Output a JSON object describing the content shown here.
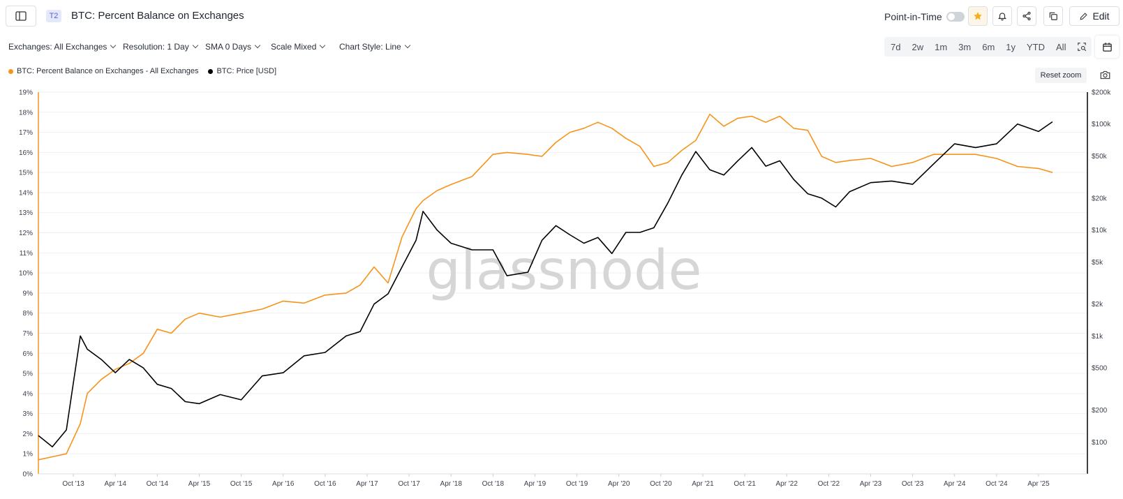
{
  "header": {
    "tier": "T2",
    "title": "BTC: Percent Balance on Exchanges",
    "point_in_time_label": "Point-in-Time",
    "edit_label": "Edit"
  },
  "filters": {
    "exchanges": "Exchanges: All Exchanges",
    "resolution": "Resolution: 1 Day",
    "sma": "SMA 0 Days",
    "scale": "Scale Mixed",
    "chart_style": "Chart Style: Line"
  },
  "ranges": [
    "7d",
    "2w",
    "1m",
    "3m",
    "6m",
    "1y",
    "YTD",
    "All"
  ],
  "reset_zoom": "Reset zoom",
  "watermark": "glassnode",
  "colors": {
    "balance": "#f7931a",
    "price": "#000000",
    "accent": "#f2b01e"
  },
  "chart_data": {
    "type": "line",
    "title": "",
    "x_ticks": [
      "Oct '13",
      "Apr '14",
      "Oct '14",
      "Apr '15",
      "Oct '15",
      "Apr '16",
      "Oct '16",
      "Apr '17",
      "Oct '17",
      "Apr '18",
      "Oct '18",
      "Apr '19",
      "Oct '19",
      "Apr '20",
      "Oct '20",
      "Apr '21",
      "Oct '21",
      "Apr '22",
      "Oct '22",
      "Apr '23",
      "Oct '23",
      "Apr '24",
      "Oct '24",
      "Apr '25"
    ],
    "y_left_ticks": [
      "0%",
      "1%",
      "2%",
      "3%",
      "4%",
      "5%",
      "6%",
      "7%",
      "8%",
      "9%",
      "10%",
      "11%",
      "12%",
      "13%",
      "14%",
      "15%",
      "16%",
      "17%",
      "18%",
      "19%"
    ],
    "y_left_range": [
      0,
      19
    ],
    "y_right_ticks": [
      {
        "label": "$100",
        "value": 100
      },
      {
        "label": "$200",
        "value": 200
      },
      {
        "label": "$500",
        "value": 500
      },
      {
        "label": "$1k",
        "value": 1000
      },
      {
        "label": "$2k",
        "value": 2000
      },
      {
        "label": "$5k",
        "value": 5000
      },
      {
        "label": "$10k",
        "value": 10000
      },
      {
        "label": "$20k",
        "value": 20000
      },
      {
        "label": "$50k",
        "value": 50000
      },
      {
        "label": "$100k",
        "value": 100000
      },
      {
        "label": "$200k",
        "value": 200000
      }
    ],
    "y_right_scale": "log",
    "x_range": [
      "2013-05",
      "2025-06"
    ],
    "legend_position": "top-left",
    "grid": true,
    "series": [
      {
        "name": "BTC: Percent Balance on Exchanges - All Exchanges",
        "axis": "left",
        "x": [
          "2013-05",
          "2013-07",
          "2013-09",
          "2013-11",
          "2013-12",
          "2014-02",
          "2014-04",
          "2014-06",
          "2014-08",
          "2014-10",
          "2014-12",
          "2015-02",
          "2015-04",
          "2015-07",
          "2015-10",
          "2016-01",
          "2016-04",
          "2016-07",
          "2016-10",
          "2017-01",
          "2017-03",
          "2017-05",
          "2017-07",
          "2017-09",
          "2017-11",
          "2017-12",
          "2018-02",
          "2018-04",
          "2018-07",
          "2018-10",
          "2018-12",
          "2019-03",
          "2019-05",
          "2019-07",
          "2019-09",
          "2019-11",
          "2020-01",
          "2020-03",
          "2020-05",
          "2020-07",
          "2020-09",
          "2020-11",
          "2021-01",
          "2021-03",
          "2021-05",
          "2021-07",
          "2021-09",
          "2021-11",
          "2022-01",
          "2022-03",
          "2022-05",
          "2022-07",
          "2022-09",
          "2022-11",
          "2023-01",
          "2023-04",
          "2023-07",
          "2023-10",
          "2024-01",
          "2024-04",
          "2024-07",
          "2024-10",
          "2025-01",
          "2025-04",
          "2025-06"
        ],
        "values": [
          0.7,
          0.85,
          1.0,
          2.5,
          4.0,
          4.7,
          5.2,
          5.5,
          6.0,
          7.2,
          7.0,
          7.7,
          8.0,
          7.8,
          8.0,
          8.2,
          8.6,
          8.5,
          8.9,
          9.0,
          9.4,
          10.3,
          9.5,
          11.8,
          13.2,
          13.6,
          14.1,
          14.4,
          14.8,
          15.9,
          16.0,
          15.9,
          15.8,
          16.5,
          17.0,
          17.2,
          17.5,
          17.2,
          16.7,
          16.3,
          15.3,
          15.5,
          16.1,
          16.6,
          17.9,
          17.3,
          17.7,
          17.8,
          17.5,
          17.8,
          17.2,
          17.1,
          15.8,
          15.5,
          15.6,
          15.7,
          15.3,
          15.5,
          15.9,
          15.9,
          15.9,
          15.7,
          15.3,
          15.2,
          15.0
        ]
      },
      {
        "name": "BTC: Price [USD]",
        "axis": "right",
        "x": [
          "2013-05",
          "2013-07",
          "2013-09",
          "2013-11",
          "2013-12",
          "2014-02",
          "2014-04",
          "2014-06",
          "2014-08",
          "2014-10",
          "2014-12",
          "2015-02",
          "2015-04",
          "2015-07",
          "2015-10",
          "2016-01",
          "2016-04",
          "2016-07",
          "2016-10",
          "2017-01",
          "2017-03",
          "2017-05",
          "2017-07",
          "2017-09",
          "2017-11",
          "2017-12",
          "2018-02",
          "2018-04",
          "2018-07",
          "2018-10",
          "2018-12",
          "2019-03",
          "2019-05",
          "2019-07",
          "2019-09",
          "2019-11",
          "2020-01",
          "2020-03",
          "2020-05",
          "2020-07",
          "2020-09",
          "2020-11",
          "2021-01",
          "2021-03",
          "2021-05",
          "2021-07",
          "2021-09",
          "2021-11",
          "2022-01",
          "2022-03",
          "2022-05",
          "2022-07",
          "2022-09",
          "2022-11",
          "2023-01",
          "2023-04",
          "2023-07",
          "2023-10",
          "2024-01",
          "2024-04",
          "2024-07",
          "2024-10",
          "2025-01",
          "2025-04",
          "2025-06"
        ],
        "values": [
          115,
          90,
          130,
          1000,
          750,
          600,
          450,
          600,
          500,
          350,
          320,
          240,
          230,
          280,
          250,
          420,
          450,
          650,
          700,
          1000,
          1100,
          2000,
          2500,
          4500,
          8000,
          15000,
          10000,
          7500,
          6500,
          6500,
          3700,
          4000,
          8000,
          11000,
          9000,
          7500,
          8500,
          6000,
          9500,
          9500,
          10500,
          18000,
          33000,
          55000,
          37000,
          33000,
          45000,
          60000,
          40000,
          45000,
          30000,
          22000,
          20000,
          16500,
          23000,
          28000,
          29000,
          27000,
          42000,
          65000,
          60000,
          65000,
          100000,
          85000,
          105000
        ]
      }
    ]
  }
}
